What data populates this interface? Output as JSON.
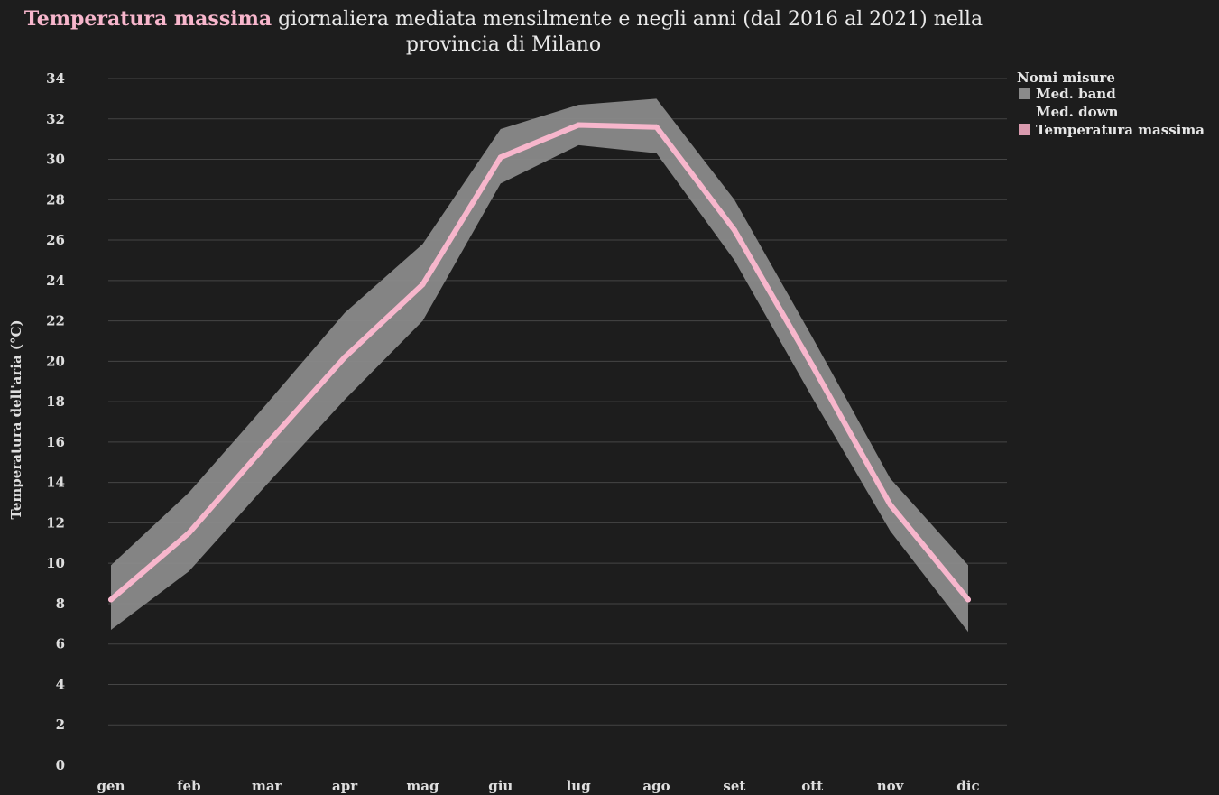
{
  "chart_data": {
    "type": "line",
    "title_highlight": "Temperatura massima",
    "title_rest_line1": " giornaliera mediata mensilmente e negli anni (dal 2016 al 2021) nella",
    "title_line2": "provincia di Milano",
    "xlabel": "",
    "ylabel": "Temperatura dell'aria (°C)",
    "categories": [
      "gen",
      "feb",
      "mar",
      "apr",
      "mag",
      "giu",
      "lug",
      "ago",
      "set",
      "ott",
      "nov",
      "dic"
    ],
    "yticks": [
      "0",
      "2",
      "4",
      "6",
      "8",
      "10",
      "12",
      "14",
      "16",
      "18",
      "20",
      "22",
      "24",
      "26",
      "28",
      "30",
      "32",
      "34"
    ],
    "ylim": [
      0,
      34
    ],
    "grid": true,
    "legend_position": "top-right",
    "legend_title": "Nomi misure",
    "series": [
      {
        "name": "Med. band",
        "kind": "band-upper",
        "color": "#8a8a8a",
        "values": [
          9.9,
          13.5,
          17.9,
          22.4,
          25.8,
          31.5,
          32.7,
          33.0,
          28.0,
          21.2,
          14.2,
          9.9
        ]
      },
      {
        "name": "Med. down",
        "kind": "band-lower",
        "values": [
          6.7,
          9.6,
          13.9,
          18.1,
          22.0,
          28.8,
          30.7,
          30.3,
          25.0,
          18.2,
          11.6,
          6.6
        ]
      },
      {
        "name": "Temperatura massima",
        "kind": "line",
        "color": "#f7b6cc",
        "legend_color": "#d99aae",
        "values": [
          8.2,
          11.5,
          15.9,
          20.2,
          23.8,
          30.1,
          31.7,
          31.6,
          26.5,
          19.8,
          12.9,
          8.2
        ]
      }
    ]
  }
}
